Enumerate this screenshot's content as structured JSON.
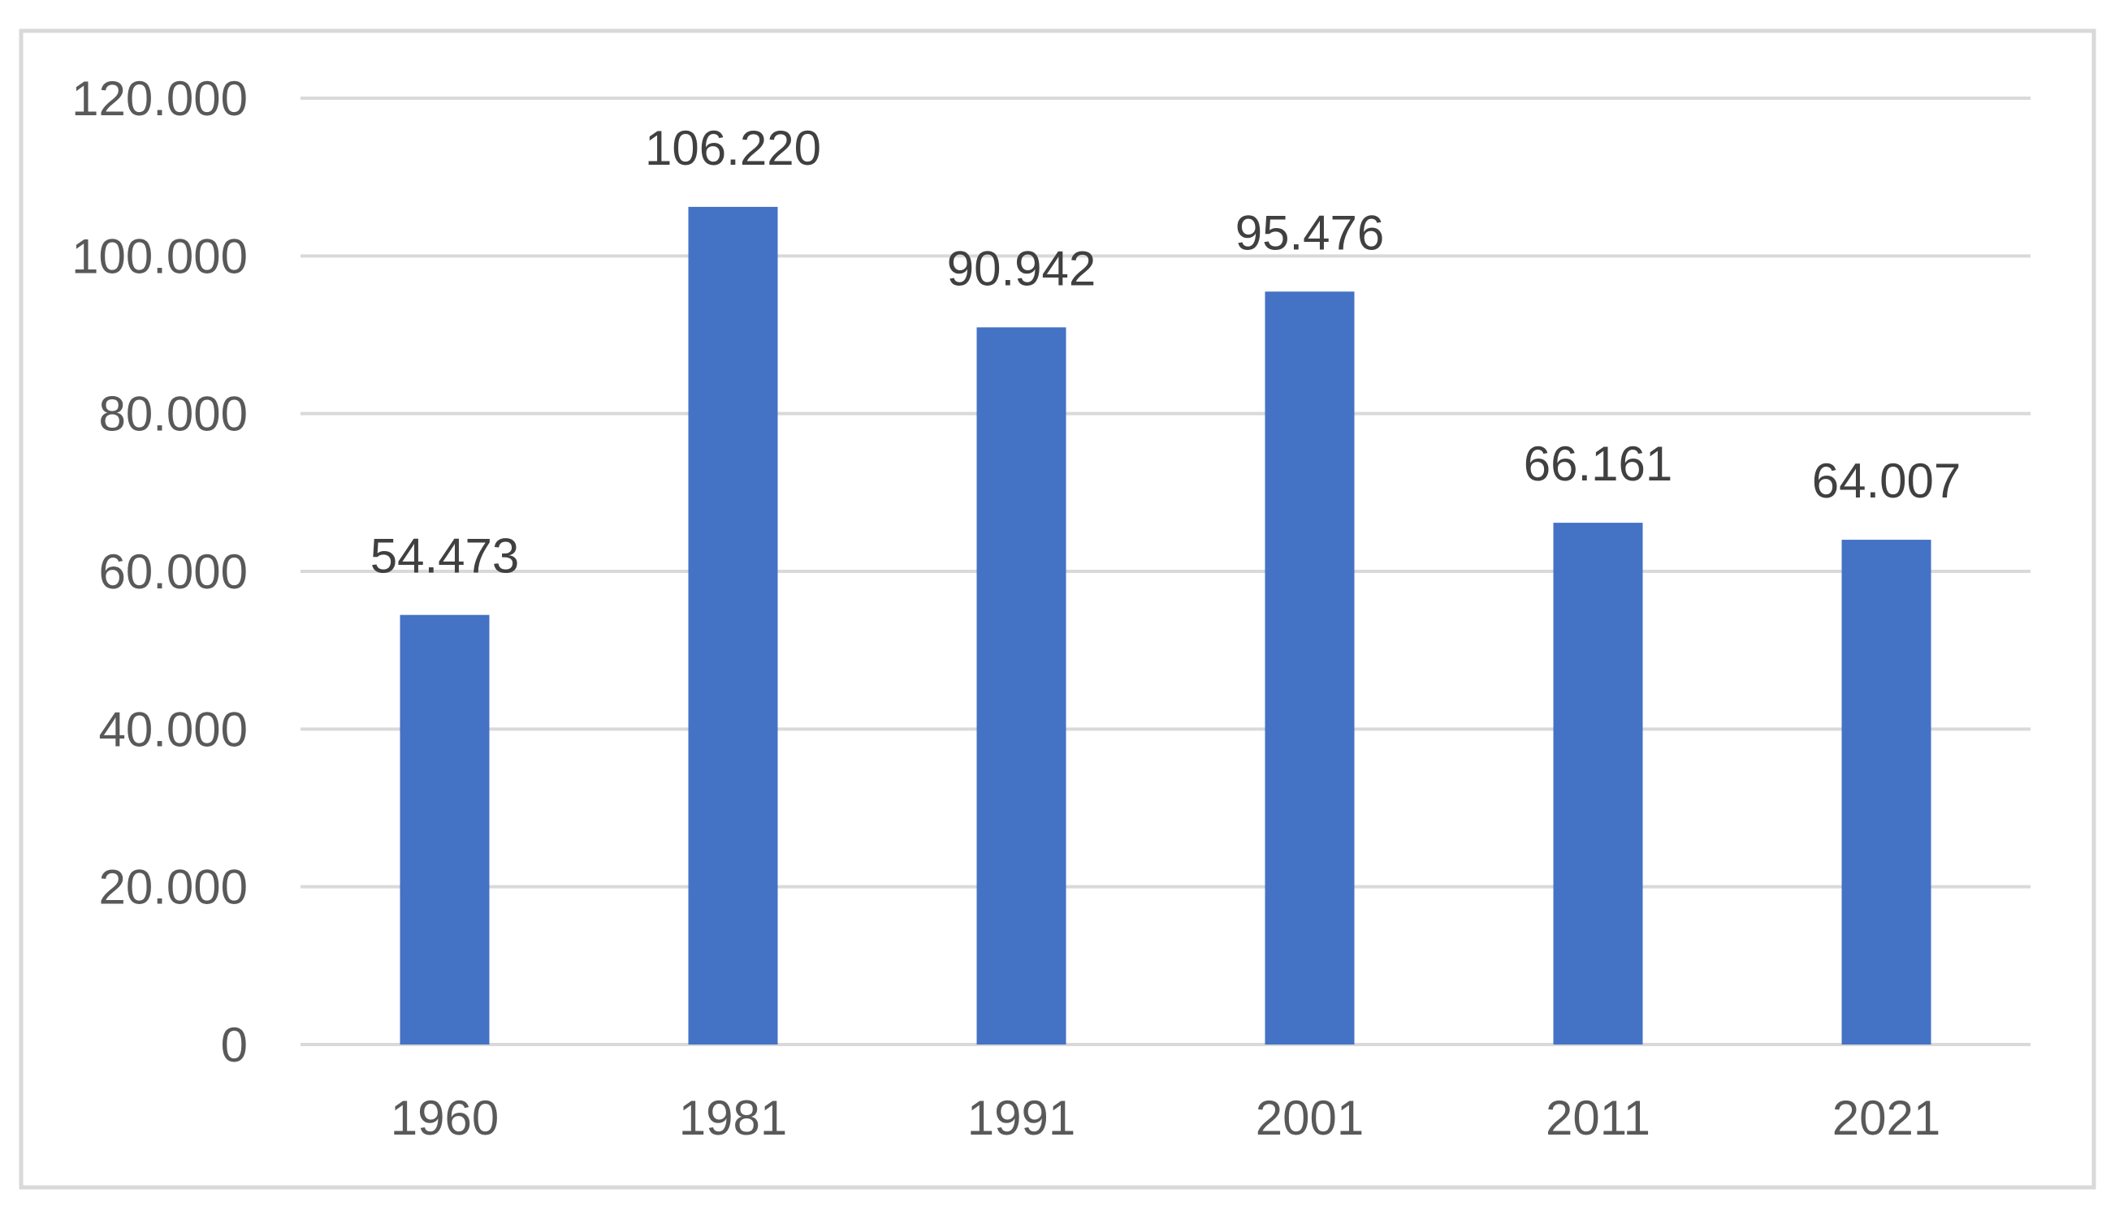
{
  "chart_data": {
    "type": "bar",
    "title": "",
    "xlabel": "",
    "ylabel": "",
    "categories": [
      "1960",
      "1981",
      "1991",
      "2001",
      "2011",
      "2021"
    ],
    "values": [
      54473,
      106220,
      90942,
      95476,
      66161,
      64007
    ],
    "data_labels": [
      "54.473",
      "106.220",
      "90.942",
      "95.476",
      "66.161",
      "64.007"
    ],
    "ylim": [
      0,
      120000
    ],
    "yticks": [
      0,
      20000,
      40000,
      60000,
      80000,
      100000,
      120000
    ],
    "ytick_labels": [
      "0",
      "20.000",
      "40.000",
      "60.000",
      "80.000",
      "100.000",
      "120.000"
    ],
    "grid": true,
    "legend": "none",
    "bar_color": "#4472c4"
  }
}
